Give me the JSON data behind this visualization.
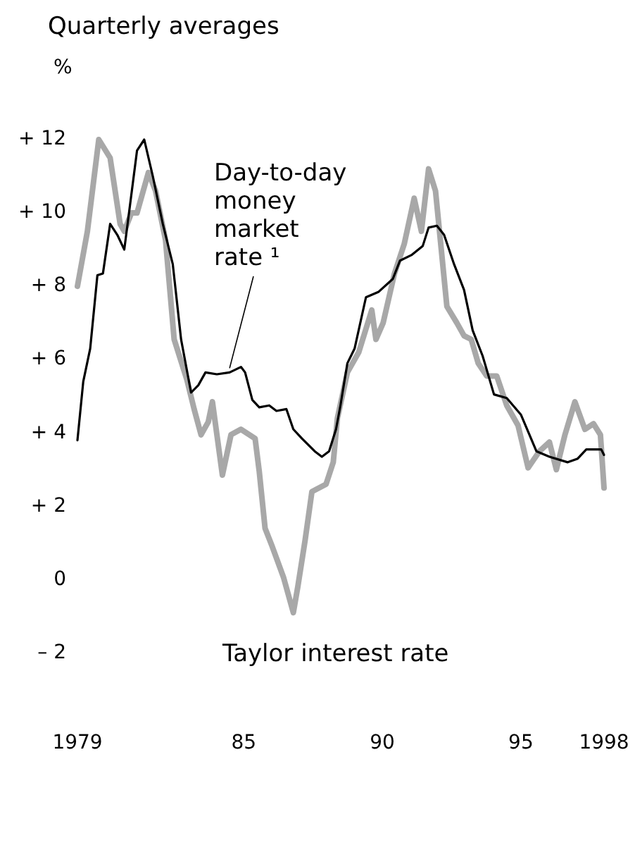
{
  "chart_data": {
    "type": "line",
    "title": "Quarterly averages",
    "ylabel": "%",
    "xlim": [
      1979,
      1998
    ],
    "xticks": [
      1979,
      {
        "value": 1985,
        "label": "85"
      },
      {
        "value": 1990,
        "label": "90"
      },
      {
        "value": 1995,
        "label": "95"
      },
      1998
    ],
    "ylim": [
      -2,
      12
    ],
    "yticks": [
      {
        "value": -2,
        "label": "– 2"
      },
      0,
      {
        "value": 2,
        "label": "+ 2"
      },
      {
        "value": 4,
        "label": "+ 4"
      },
      {
        "value": 6,
        "label": "+ 6"
      },
      {
        "value": 8,
        "label": "+ 8"
      },
      {
        "value": 10,
        "label": "+ 10"
      },
      {
        "value": 12,
        "label": "+ 12"
      }
    ],
    "legend": false,
    "grid": false,
    "marker": "none",
    "series": [
      {
        "name": "Taylor interest rate",
        "color": "#a8a8a8",
        "x": [
          1979.0,
          1979.36,
          1979.77,
          1980.18,
          1980.54,
          1980.69,
          1980.95,
          1981.15,
          1981.56,
          1981.82,
          1982.18,
          1982.49,
          1982.95,
          1983.21,
          1983.46,
          1983.72,
          1983.87,
          1984.23,
          1984.54,
          1984.9,
          1985.41,
          1985.56,
          1985.77,
          1986.03,
          1986.44,
          1986.79,
          1986.95,
          1987.21,
          1987.46,
          1987.97,
          1988.23,
          1988.38,
          1988.74,
          1989.15,
          1989.62,
          1989.77,
          1990.03,
          1990.44,
          1990.79,
          1991.15,
          1991.41,
          1991.67,
          1991.92,
          1992.33,
          1992.69,
          1992.95,
          1993.21,
          1993.46,
          1993.77,
          1994.13,
          1994.49,
          1994.9,
          1995.26,
          1995.67,
          1996.03,
          1996.28,
          1996.59,
          1996.95,
          1997.31,
          1997.62,
          1997.87,
          1998.0
        ],
        "values": [
          8.0,
          9.5,
          12.0,
          11.5,
          9.7,
          9.5,
          10.0,
          10.0,
          11.1,
          10.6,
          9.25,
          6.55,
          5.45,
          4.65,
          3.95,
          4.3,
          4.85,
          2.85,
          3.95,
          4.1,
          3.85,
          2.95,
          1.4,
          0.9,
          0.05,
          -0.9,
          -0.2,
          1.05,
          2.4,
          2.6,
          3.2,
          4.4,
          5.65,
          6.2,
          7.35,
          6.55,
          7.0,
          8.35,
          9.15,
          10.4,
          9.5,
          11.2,
          10.6,
          7.45,
          7.0,
          6.65,
          6.55,
          5.9,
          5.55,
          5.55,
          4.75,
          4.2,
          3.05,
          3.5,
          3.75,
          3.0,
          3.95,
          4.85,
          4.1,
          4.25,
          3.95,
          2.5
        ]
      },
      {
        "name": "Day-to-day money market rate ¹",
        "color": "#000000",
        "x": [
          1979.0,
          1979.21,
          1979.46,
          1979.72,
          1979.92,
          1980.18,
          1980.44,
          1980.69,
          1981.15,
          1981.41,
          1981.72,
          1982.08,
          1982.44,
          1982.74,
          1983.1,
          1983.36,
          1983.62,
          1984.03,
          1984.49,
          1984.9,
          1985.05,
          1985.31,
          1985.56,
          1985.92,
          1986.18,
          1986.54,
          1986.79,
          1987.1,
          1987.56,
          1987.82,
          1988.08,
          1988.33,
          1988.49,
          1988.74,
          1989.0,
          1989.41,
          1989.87,
          1990.38,
          1990.64,
          1991.05,
          1991.46,
          1991.67,
          1991.97,
          1992.23,
          1992.59,
          1992.95,
          1993.26,
          1993.62,
          1994.03,
          1994.49,
          1995.0,
          1995.31,
          1995.56,
          1996.03,
          1996.69,
          1997.05,
          1997.36,
          1997.9,
          1998.0
        ],
        "values": [
          3.8,
          5.4,
          6.3,
          8.3,
          8.35,
          9.7,
          9.4,
          9.0,
          11.7,
          12.0,
          11.0,
          9.7,
          8.6,
          6.55,
          5.1,
          5.3,
          5.65,
          5.6,
          5.65,
          5.8,
          5.65,
          4.9,
          4.7,
          4.75,
          4.6,
          4.65,
          4.1,
          3.85,
          3.5,
          3.35,
          3.5,
          4.1,
          4.75,
          5.9,
          6.3,
          7.7,
          7.85,
          8.2,
          8.7,
          8.85,
          9.1,
          9.6,
          9.65,
          9.4,
          8.6,
          7.9,
          6.8,
          6.1,
          5.05,
          4.95,
          4.5,
          3.95,
          3.5,
          3.35,
          3.2,
          3.3,
          3.55,
          3.55,
          3.4
        ]
      }
    ]
  }
}
